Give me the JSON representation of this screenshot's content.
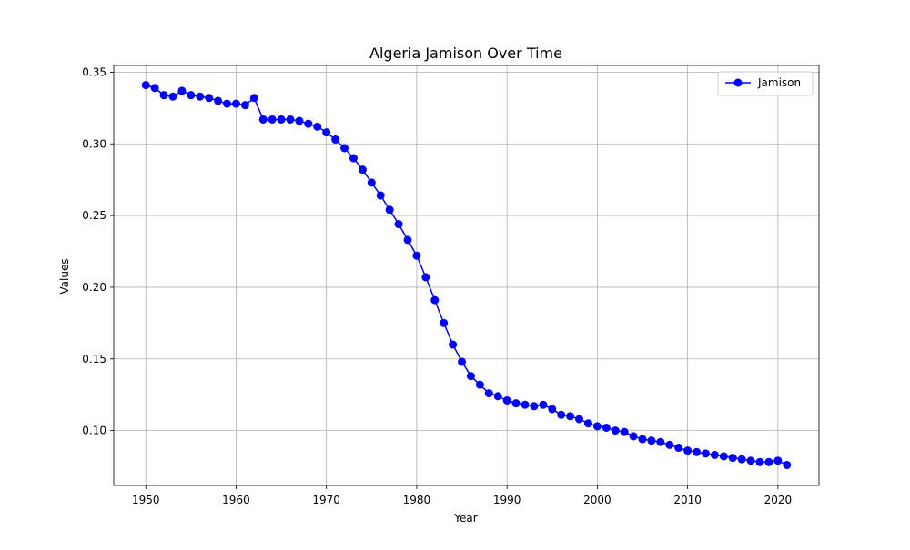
{
  "chart_data": {
    "type": "line",
    "title": "Algeria Jamison Over Time",
    "xlabel": "Year",
    "ylabel": "Values",
    "xlim": [
      1946.45,
      2024.55
    ],
    "ylim": [
      0.0617,
      0.3547
    ],
    "x_ticks": [
      1950,
      1960,
      1970,
      1980,
      1990,
      2000,
      2010,
      2020
    ],
    "y_ticks": [
      0.1,
      0.15,
      0.2,
      0.25,
      0.3,
      0.35
    ],
    "y_tick_labels": [
      "0.10",
      "0.15",
      "0.20",
      "0.25",
      "0.30",
      "0.35"
    ],
    "grid": true,
    "legend_position": "top-right",
    "series": [
      {
        "name": "Jamison",
        "color": "#0000ff",
        "marker": "circle",
        "x": [
          1950,
          1951,
          1952,
          1953,
          1954,
          1955,
          1956,
          1957,
          1958,
          1959,
          1960,
          1961,
          1962,
          1963,
          1964,
          1965,
          1966,
          1967,
          1968,
          1969,
          1970,
          1971,
          1972,
          1973,
          1974,
          1975,
          1976,
          1977,
          1978,
          1979,
          1980,
          1981,
          1982,
          1983,
          1984,
          1985,
          1986,
          1987,
          1988,
          1989,
          1990,
          1991,
          1992,
          1993,
          1994,
          1995,
          1996,
          1997,
          1998,
          1999,
          2000,
          2001,
          2002,
          2003,
          2004,
          2005,
          2006,
          2007,
          2008,
          2009,
          2010,
          2011,
          2012,
          2013,
          2014,
          2015,
          2016,
          2017,
          2018,
          2019,
          2020,
          2021
        ],
        "values": [
          0.341,
          0.339,
          0.334,
          0.333,
          0.337,
          0.334,
          0.333,
          0.332,
          0.33,
          0.328,
          0.328,
          0.327,
          0.332,
          0.317,
          0.317,
          0.317,
          0.317,
          0.316,
          0.314,
          0.312,
          0.308,
          0.303,
          0.297,
          0.29,
          0.282,
          0.273,
          0.264,
          0.254,
          0.244,
          0.233,
          0.222,
          0.207,
          0.191,
          0.175,
          0.16,
          0.148,
          0.138,
          0.132,
          0.126,
          0.124,
          0.121,
          0.119,
          0.118,
          0.117,
          0.118,
          0.115,
          0.111,
          0.11,
          0.108,
          0.105,
          0.103,
          0.102,
          0.1,
          0.099,
          0.096,
          0.094,
          0.093,
          0.092,
          0.09,
          0.088,
          0.086,
          0.085,
          0.084,
          0.083,
          0.082,
          0.081,
          0.08,
          0.079,
          0.078,
          0.078,
          0.079,
          0.076
        ]
      }
    ]
  }
}
